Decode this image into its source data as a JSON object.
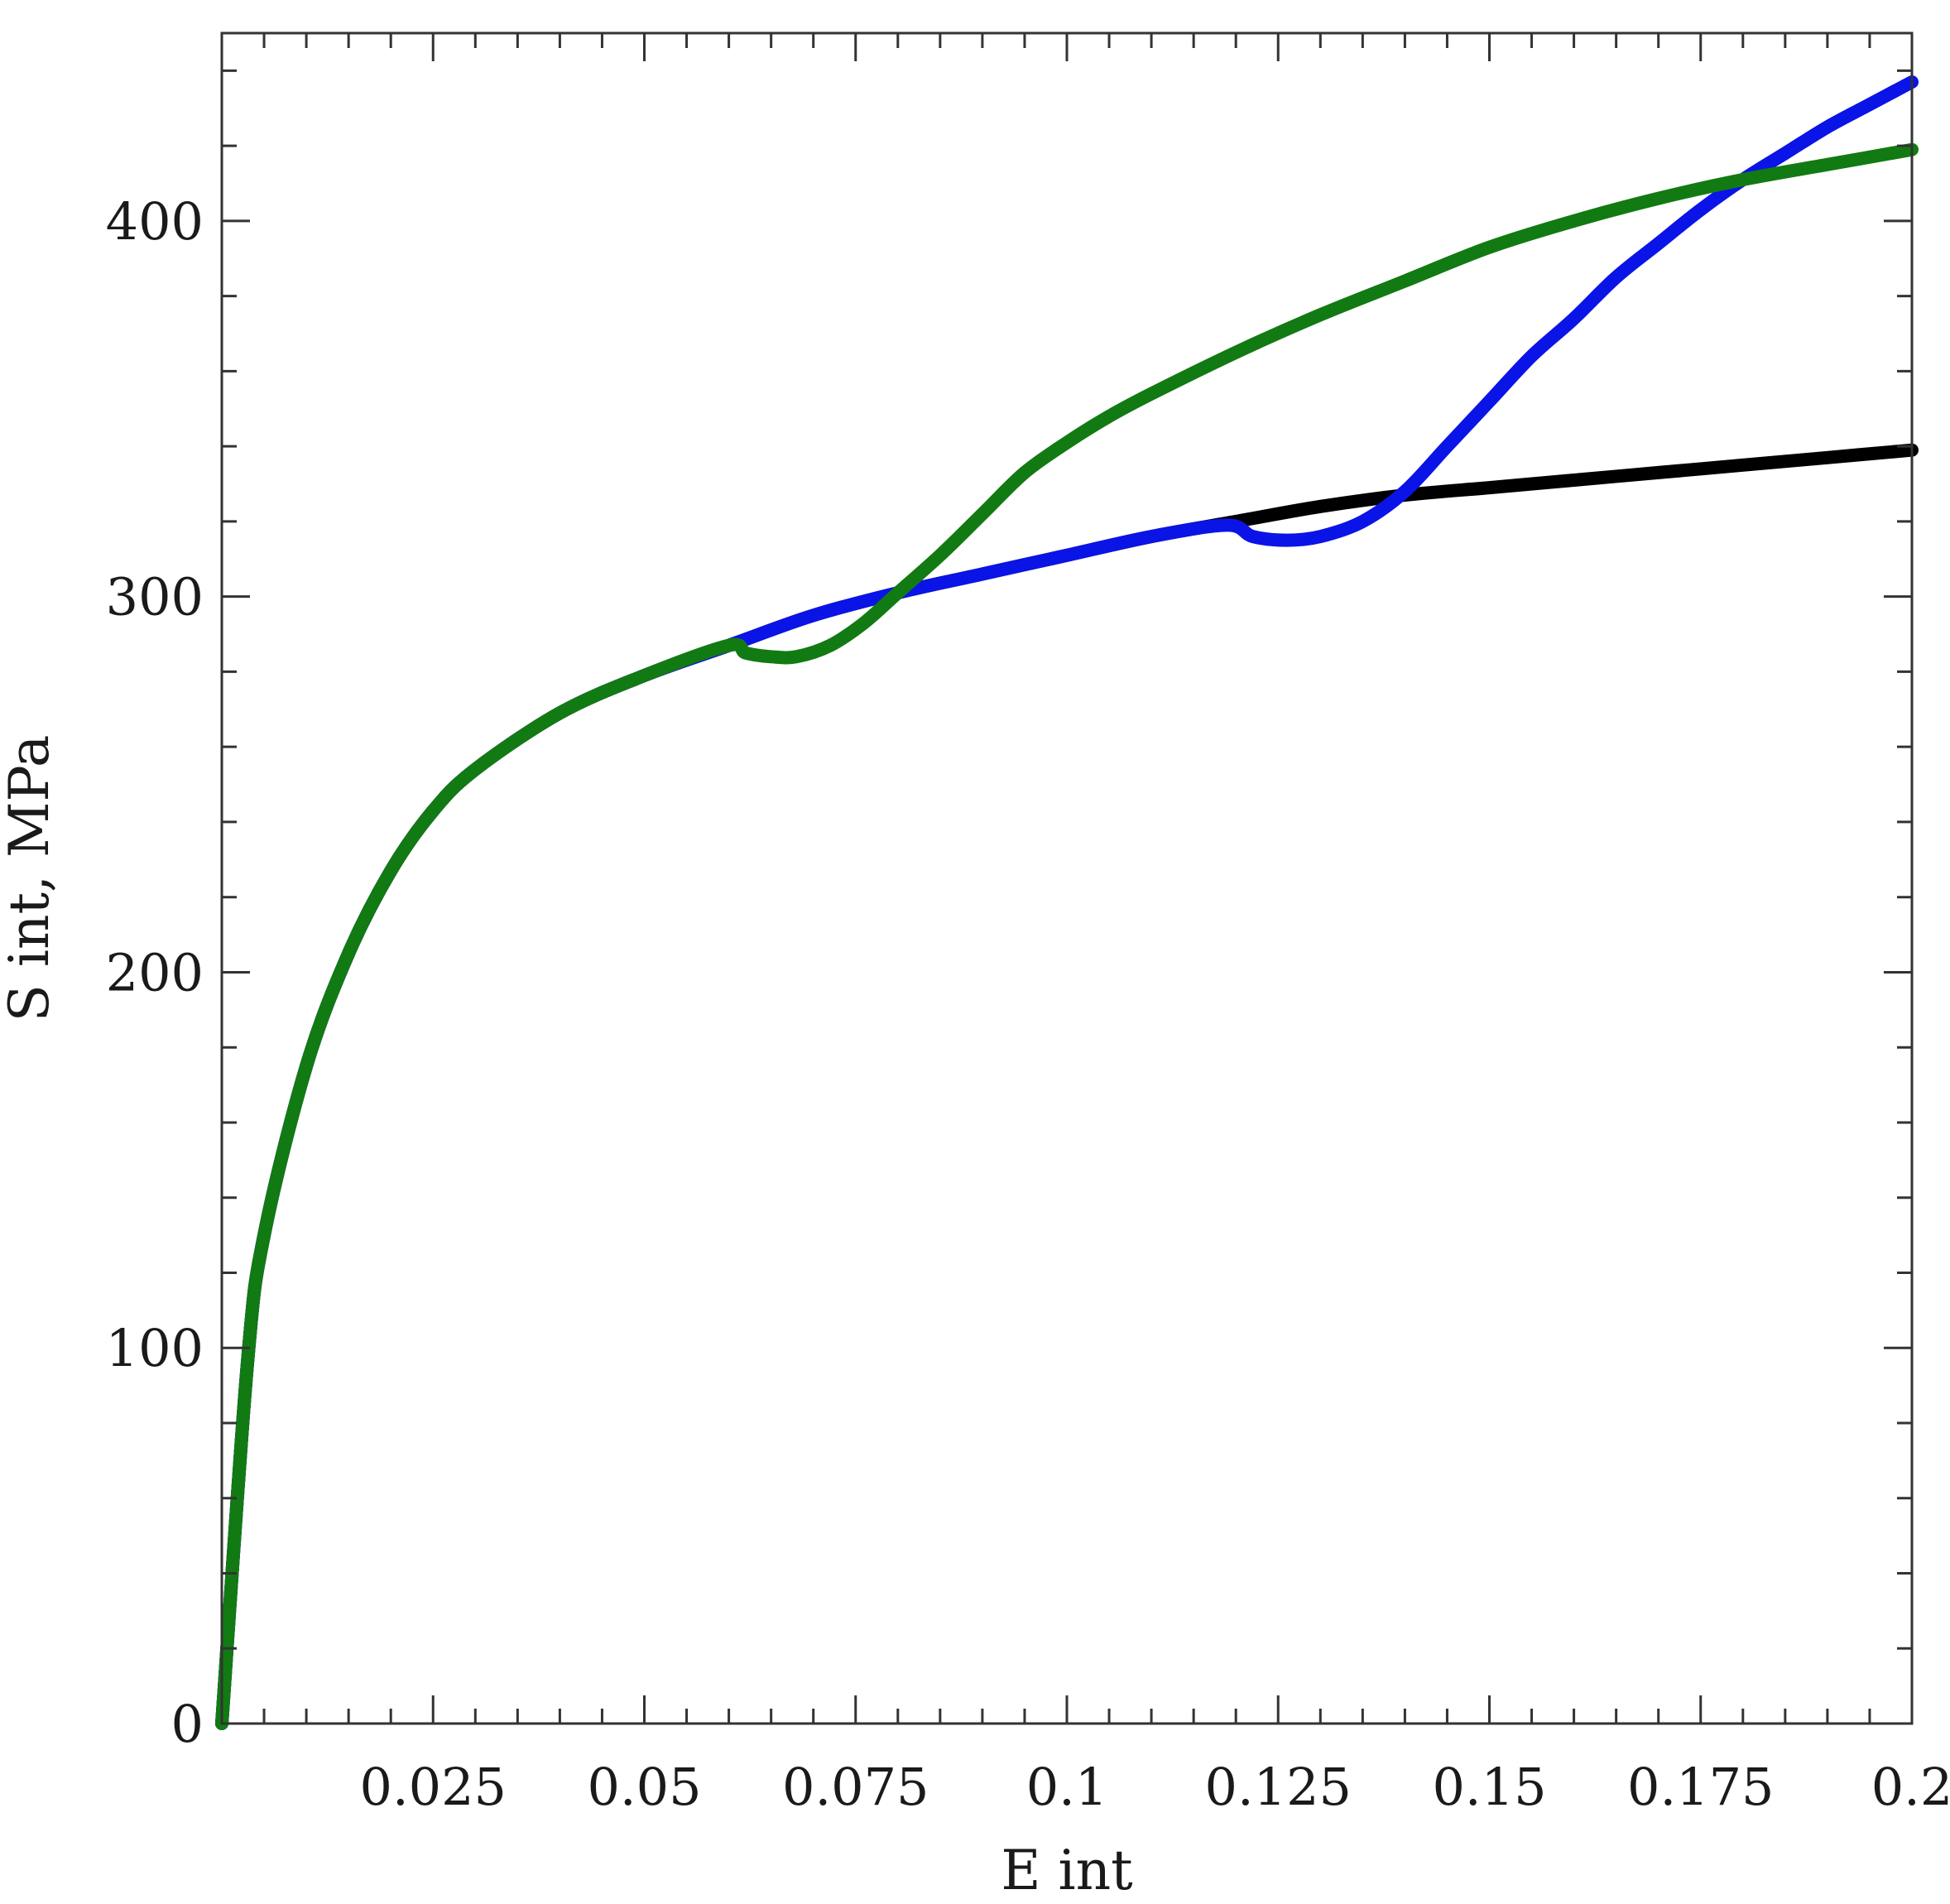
{
  "chart_data": {
    "type": "line",
    "title": "",
    "xlabel": "E int",
    "ylabel": "S int, MPa",
    "xlim": [
      0,
      0.2
    ],
    "ylim": [
      0,
      450
    ],
    "grid": false,
    "x_ticks": [
      0.025,
      0.05,
      0.075,
      0.1,
      0.125,
      0.15,
      0.175,
      0.2
    ],
    "x_tick_labels": [
      "0.025",
      "0.05",
      "0.075",
      "0.1",
      "0.125",
      "0.15",
      "0.175",
      "0.2"
    ],
    "y_ticks": [
      0,
      100,
      200,
      300,
      400
    ],
    "y_tick_labels": [
      "0",
      "100",
      "200",
      "300",
      "400"
    ],
    "series": [
      {
        "color": "#000000",
        "x": [
          0,
          0.003,
          0.005,
          0.01,
          0.015,
          0.02,
          0.025,
          0.03,
          0.04,
          0.05,
          0.06,
          0.07,
          0.08,
          0.09,
          0.1,
          0.11,
          0.12,
          0.13,
          0.14,
          0.15,
          0.16,
          0.17,
          0.18,
          0.19,
          0.2
        ],
        "y": [
          0,
          95,
          130,
          175,
          205,
          227,
          243,
          254,
          269,
          279,
          287,
          295,
          301,
          306,
          311,
          316,
          320,
          324,
          327,
          329,
          331,
          333,
          335,
          337,
          339
        ]
      },
      {
        "color": "#0a14e6",
        "x": [
          0,
          0.003,
          0.005,
          0.01,
          0.015,
          0.02,
          0.025,
          0.03,
          0.04,
          0.05,
          0.06,
          0.07,
          0.08,
          0.09,
          0.1,
          0.11,
          0.119,
          0.122,
          0.126,
          0.13,
          0.135,
          0.14,
          0.145,
          0.15,
          0.155,
          0.16,
          0.165,
          0.17,
          0.175,
          0.18,
          0.185,
          0.19,
          0.195,
          0.2
        ],
        "y": [
          0,
          95,
          130,
          175,
          205,
          227,
          243,
          254,
          269,
          279,
          287,
          295,
          301,
          306,
          311,
          316,
          319,
          316,
          315,
          316,
          320,
          328,
          340,
          352,
          364,
          374,
          385,
          394,
          403,
          411,
          418,
          425,
          431,
          437
        ]
      },
      {
        "color": "#127a12",
        "x": [
          0,
          0.003,
          0.005,
          0.01,
          0.015,
          0.02,
          0.025,
          0.03,
          0.04,
          0.05,
          0.06,
          0.062,
          0.065,
          0.068,
          0.072,
          0.076,
          0.08,
          0.085,
          0.09,
          0.095,
          0.1,
          0.105,
          0.11,
          0.12,
          0.13,
          0.14,
          0.15,
          0.16,
          0.17,
          0.18,
          0.19,
          0.2
        ],
        "y": [
          0,
          95,
          130,
          175,
          205,
          227,
          243,
          254,
          269,
          279,
          287,
          285,
          284,
          284,
          287,
          293,
          301,
          311,
          322,
          333,
          341,
          348,
          354,
          365,
          375,
          384,
          393,
          400,
          406,
          411,
          415,
          419
        ]
      }
    ]
  }
}
